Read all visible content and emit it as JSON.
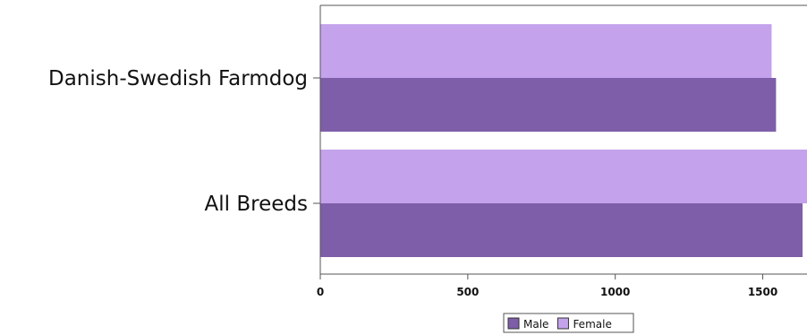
{
  "chart_data": {
    "type": "bar",
    "orientation": "horizontal",
    "categories": [
      "Danish-Swedish Farmdog",
      "All Breeds"
    ],
    "series": [
      {
        "name": "Female",
        "values": [
          1530,
          1660
        ],
        "color": "#C4A3EC"
      },
      {
        "name": "Male",
        "values": [
          1545,
          1635
        ],
        "color": "#7E5EA8"
      }
    ],
    "x_ticks": [
      0,
      500,
      1000,
      1500
    ],
    "xlim": [
      0,
      1650
    ],
    "grid": false,
    "legend": {
      "position": "bottom-center",
      "items": [
        "Male",
        "Female"
      ]
    }
  }
}
